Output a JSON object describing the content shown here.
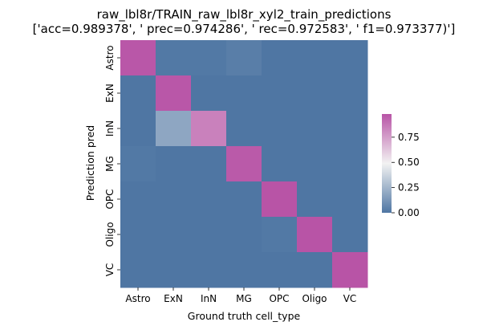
{
  "chart_data": {
    "type": "heatmap",
    "title_line1": "raw_lbl8r/TRAIN_raw_lbl8r_xyl2_train_predictions",
    "title_line2": "['acc=0.989378', ' prec=0.974286', ' rec=0.972583', ' f1=0.973377)']",
    "xlabel": "Ground truth cell_type",
    "ylabel": "Prediction pred",
    "x_categories": [
      "Astro",
      "ExN",
      "InN",
      "MG",
      "OPC",
      "Oligo",
      "VC"
    ],
    "y_categories": [
      "Astro",
      "ExN",
      "InN",
      "MG",
      "OPC",
      "Oligo",
      "VC"
    ],
    "values": [
      [
        0.97,
        0.01,
        0.01,
        0.03,
        0.0,
        0.0,
        0.0
      ],
      [
        0.0,
        0.97,
        0.0,
        0.0,
        0.0,
        0.0,
        0.0
      ],
      [
        0.0,
        0.19,
        0.84,
        0.0,
        0.0,
        0.0,
        0.0
      ],
      [
        0.01,
        0.0,
        0.0,
        0.96,
        0.0,
        0.0,
        0.0
      ],
      [
        0.0,
        0.0,
        0.0,
        0.0,
        0.98,
        0.0,
        0.0
      ],
      [
        0.0,
        0.0,
        0.0,
        0.0,
        0.01,
        0.98,
        0.0
      ],
      [
        0.0,
        0.0,
        0.0,
        0.0,
        0.0,
        0.0,
        0.98
      ]
    ],
    "vmin": 0,
    "vmax": 0.98,
    "colorbar_ticks": [
      0.0,
      0.25,
      0.5,
      0.75
    ],
    "colormap": [
      "#4f76a3",
      "#f2f2f2",
      "#b854a6"
    ],
    "grid": false,
    "legend": "colorbar-right"
  }
}
